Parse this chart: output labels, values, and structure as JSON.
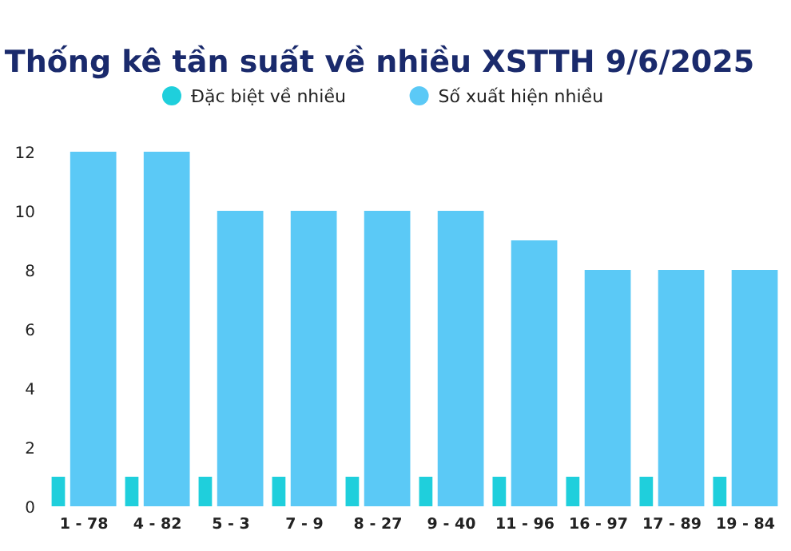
{
  "chart_data": {
    "type": "bar",
    "title": "Thống kê tần suất về nhiều XSTTH 9/6/2025",
    "categories": [
      "1 - 78",
      "4 - 82",
      "5 - 3",
      "7 - 9",
      "8 - 27",
      "9 - 40",
      "11 - 96",
      "16 - 97",
      "17 - 89",
      "19 - 84"
    ],
    "series": [
      {
        "name": "Đặc biệt về nhiều",
        "color": "#1fcfdc",
        "values": [
          1,
          1,
          1,
          1,
          1,
          1,
          1,
          1,
          1,
          1
        ]
      },
      {
        "name": "Số xuất hiện nhiều",
        "color": "#5bc9f6",
        "values": [
          12,
          12,
          10,
          10,
          10,
          10,
          9,
          8,
          8,
          8
        ]
      }
    ],
    "ylim": [
      0,
      12
    ],
    "yticks": [
      0,
      2,
      4,
      6,
      8,
      10,
      12
    ],
    "legend": "top"
  }
}
